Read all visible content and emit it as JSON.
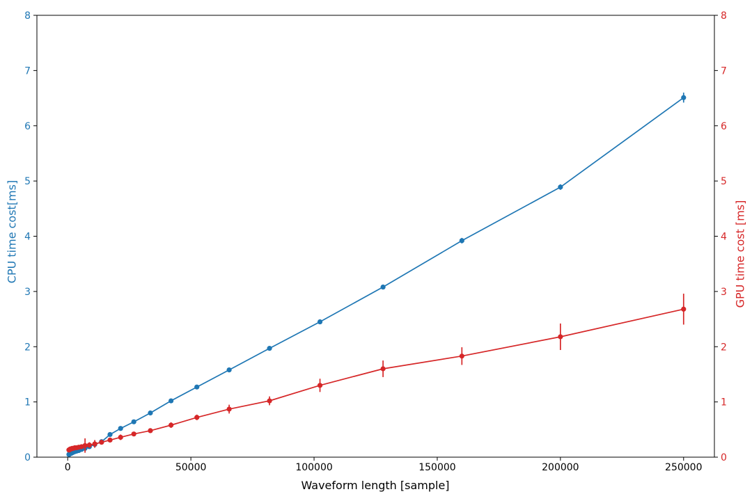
{
  "chart_data": {
    "type": "line",
    "title": "",
    "xlabel": "Waveform length [sample]",
    "ylabel_left": "CPU time cost[ms]",
    "ylabel_right": "GPU time cost [ms]",
    "xlim": [
      -12500,
      262500
    ],
    "ylim_left": [
      0,
      8
    ],
    "ylim_right": [
      0,
      8
    ],
    "grid": false,
    "legend": false,
    "x_axis": {
      "tick_values": [
        0,
        50000,
        100000,
        150000,
        200000,
        250000
      ],
      "tick_labels": [
        "0",
        "50000",
        "100000",
        "150000",
        "200000",
        "250000"
      ],
      "label_color": "#000000"
    },
    "y_axis_left": {
      "tick_values": [
        0,
        1,
        2,
        3,
        4,
        5,
        6,
        7,
        8
      ],
      "tick_labels": [
        "0",
        "1",
        "2",
        "3",
        "4",
        "5",
        "6",
        "7",
        "8"
      ],
      "label_color": "#1f77b4"
    },
    "y_axis_right": {
      "tick_values": [
        0,
        1,
        2,
        3,
        4,
        5,
        6,
        7,
        8
      ],
      "tick_labels": [
        "0",
        "1",
        "2",
        "3",
        "4",
        "5",
        "6",
        "7",
        "8"
      ],
      "label_color": "#d62728"
    },
    "x": [
      484,
      605,
      756,
      944,
      1181,
      1476,
      1845,
      2306,
      2882,
      3603,
      4504,
      5629,
      7037,
      8796,
      10995,
      13744,
      17180,
      21475,
      26844,
      33554,
      41943,
      52429,
      65536,
      81920,
      102400,
      128000,
      160000,
      200000,
      250000
    ],
    "series": [
      {
        "name": "CPU",
        "axis": "left",
        "color": "#1f77b4",
        "marker": "circle",
        "y": [
          0.05,
          0.05,
          0.06,
          0.06,
          0.07,
          0.07,
          0.08,
          0.09,
          0.1,
          0.11,
          0.12,
          0.14,
          0.16,
          0.19,
          0.23,
          0.28,
          0.41,
          0.52,
          0.64,
          0.8,
          1.02,
          1.27,
          1.58,
          1.97,
          2.45,
          3.08,
          3.92,
          4.89,
          6.51
        ],
        "yerr": [
          0.01,
          0.01,
          0.01,
          0.01,
          0.01,
          0.01,
          0.01,
          0.01,
          0.01,
          0.01,
          0.02,
          0.02,
          0.02,
          0.02,
          0.02,
          0.02,
          0.02,
          0.02,
          0.02,
          0.03,
          0.03,
          0.03,
          0.03,
          0.03,
          0.04,
          0.04,
          0.05,
          0.05,
          0.09
        ]
      },
      {
        "name": "GPU",
        "axis": "right",
        "color": "#d62728",
        "marker": "circle",
        "y": [
          0.13,
          0.13,
          0.14,
          0.14,
          0.15,
          0.15,
          0.16,
          0.16,
          0.17,
          0.17,
          0.18,
          0.19,
          0.21,
          0.22,
          0.24,
          0.27,
          0.31,
          0.36,
          0.42,
          0.48,
          0.58,
          0.72,
          0.87,
          1.02,
          1.3,
          1.6,
          1.83,
          2.18,
          2.68
        ],
        "yerr": [
          0.02,
          0.02,
          0.02,
          0.02,
          0.02,
          0.02,
          0.02,
          0.02,
          0.02,
          0.03,
          0.03,
          0.03,
          0.13,
          0.05,
          0.07,
          0.04,
          0.03,
          0.05,
          0.04,
          0.04,
          0.05,
          0.05,
          0.08,
          0.08,
          0.12,
          0.15,
          0.16,
          0.24,
          0.28
        ]
      }
    ]
  }
}
